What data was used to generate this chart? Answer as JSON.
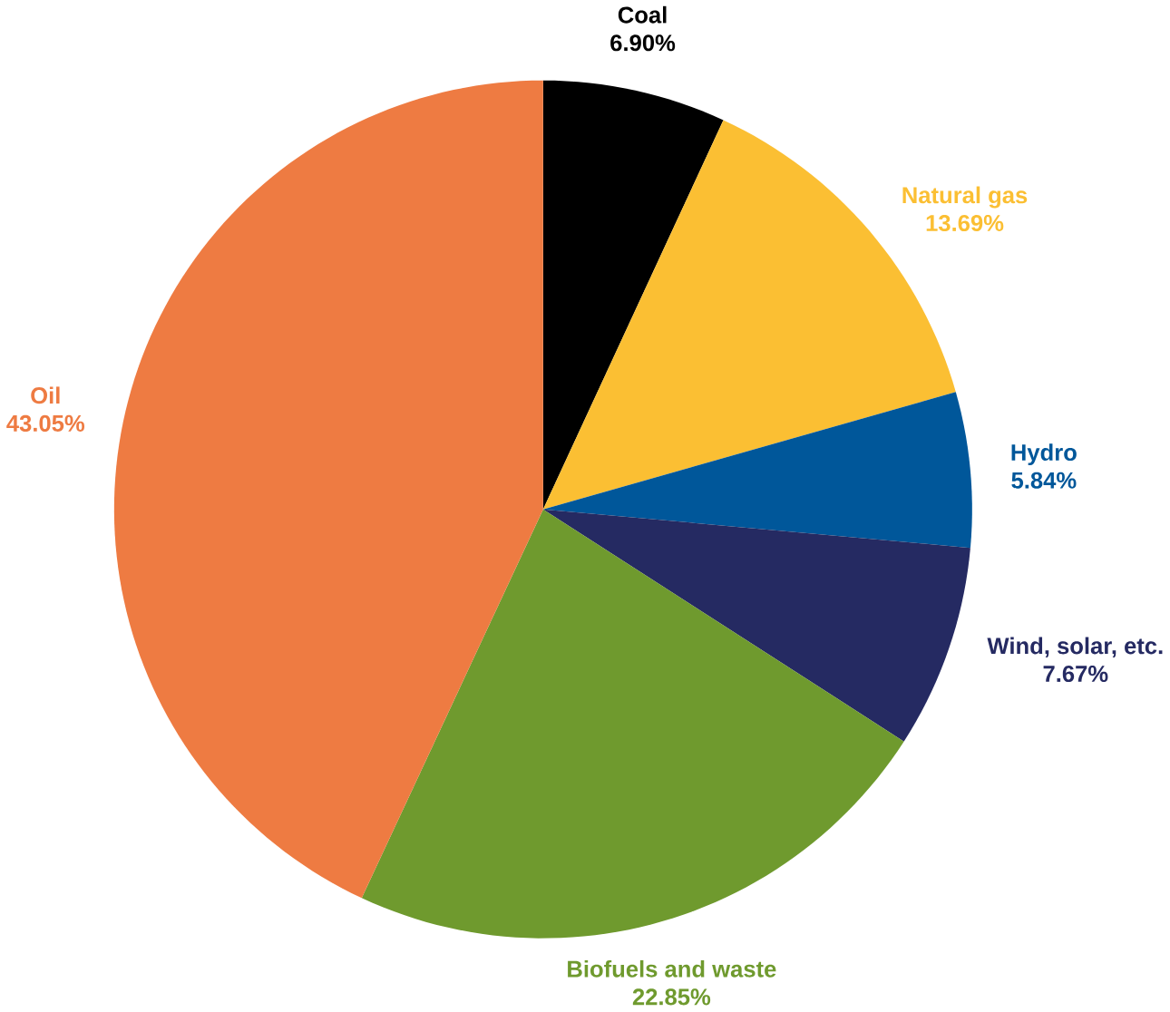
{
  "chart_data": {
    "type": "pie",
    "categories": [
      "Coal",
      "Natural gas",
      "Hydro",
      "Wind, solar, etc.",
      "Biofuels and waste",
      "Oil"
    ],
    "values": [
      6.9,
      13.69,
      5.84,
      7.67,
      22.85,
      43.05
    ],
    "colors": [
      "#000000",
      "#fbbf33",
      "#00579a",
      "#252a62",
      "#6f9a2e",
      "#ee7b42"
    ],
    "value_labels": [
      "6.90%",
      "13.69%",
      "5.84%",
      "7.67%",
      "22.85%",
      "43.05%"
    ]
  }
}
